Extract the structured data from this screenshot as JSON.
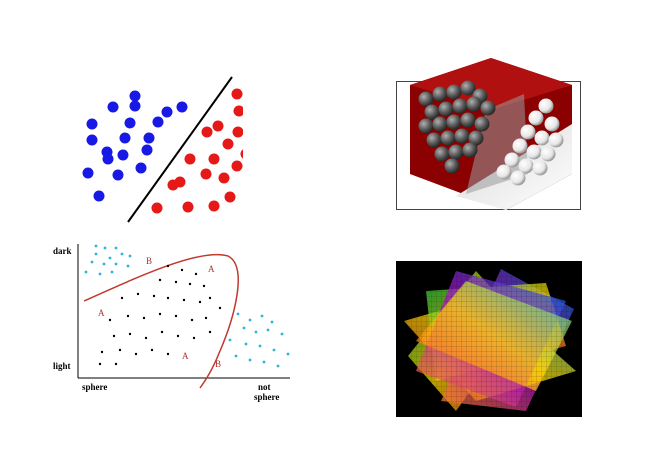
{
  "colors": {
    "blue": "#1919e6",
    "red": "#e61919",
    "cyan": "#29b6d9",
    "boundary": "#c0392b",
    "cube_red": "#8b0000",
    "black": "#000000"
  },
  "curve_plot": {
    "y_top_label": "dark",
    "y_bottom_label": "light",
    "x_left_label": "sphere",
    "x_right_label_line1": "not",
    "x_right_label_line2": "sphere",
    "region_labels": [
      "B",
      "A",
      "A",
      "A",
      "B"
    ]
  }
}
